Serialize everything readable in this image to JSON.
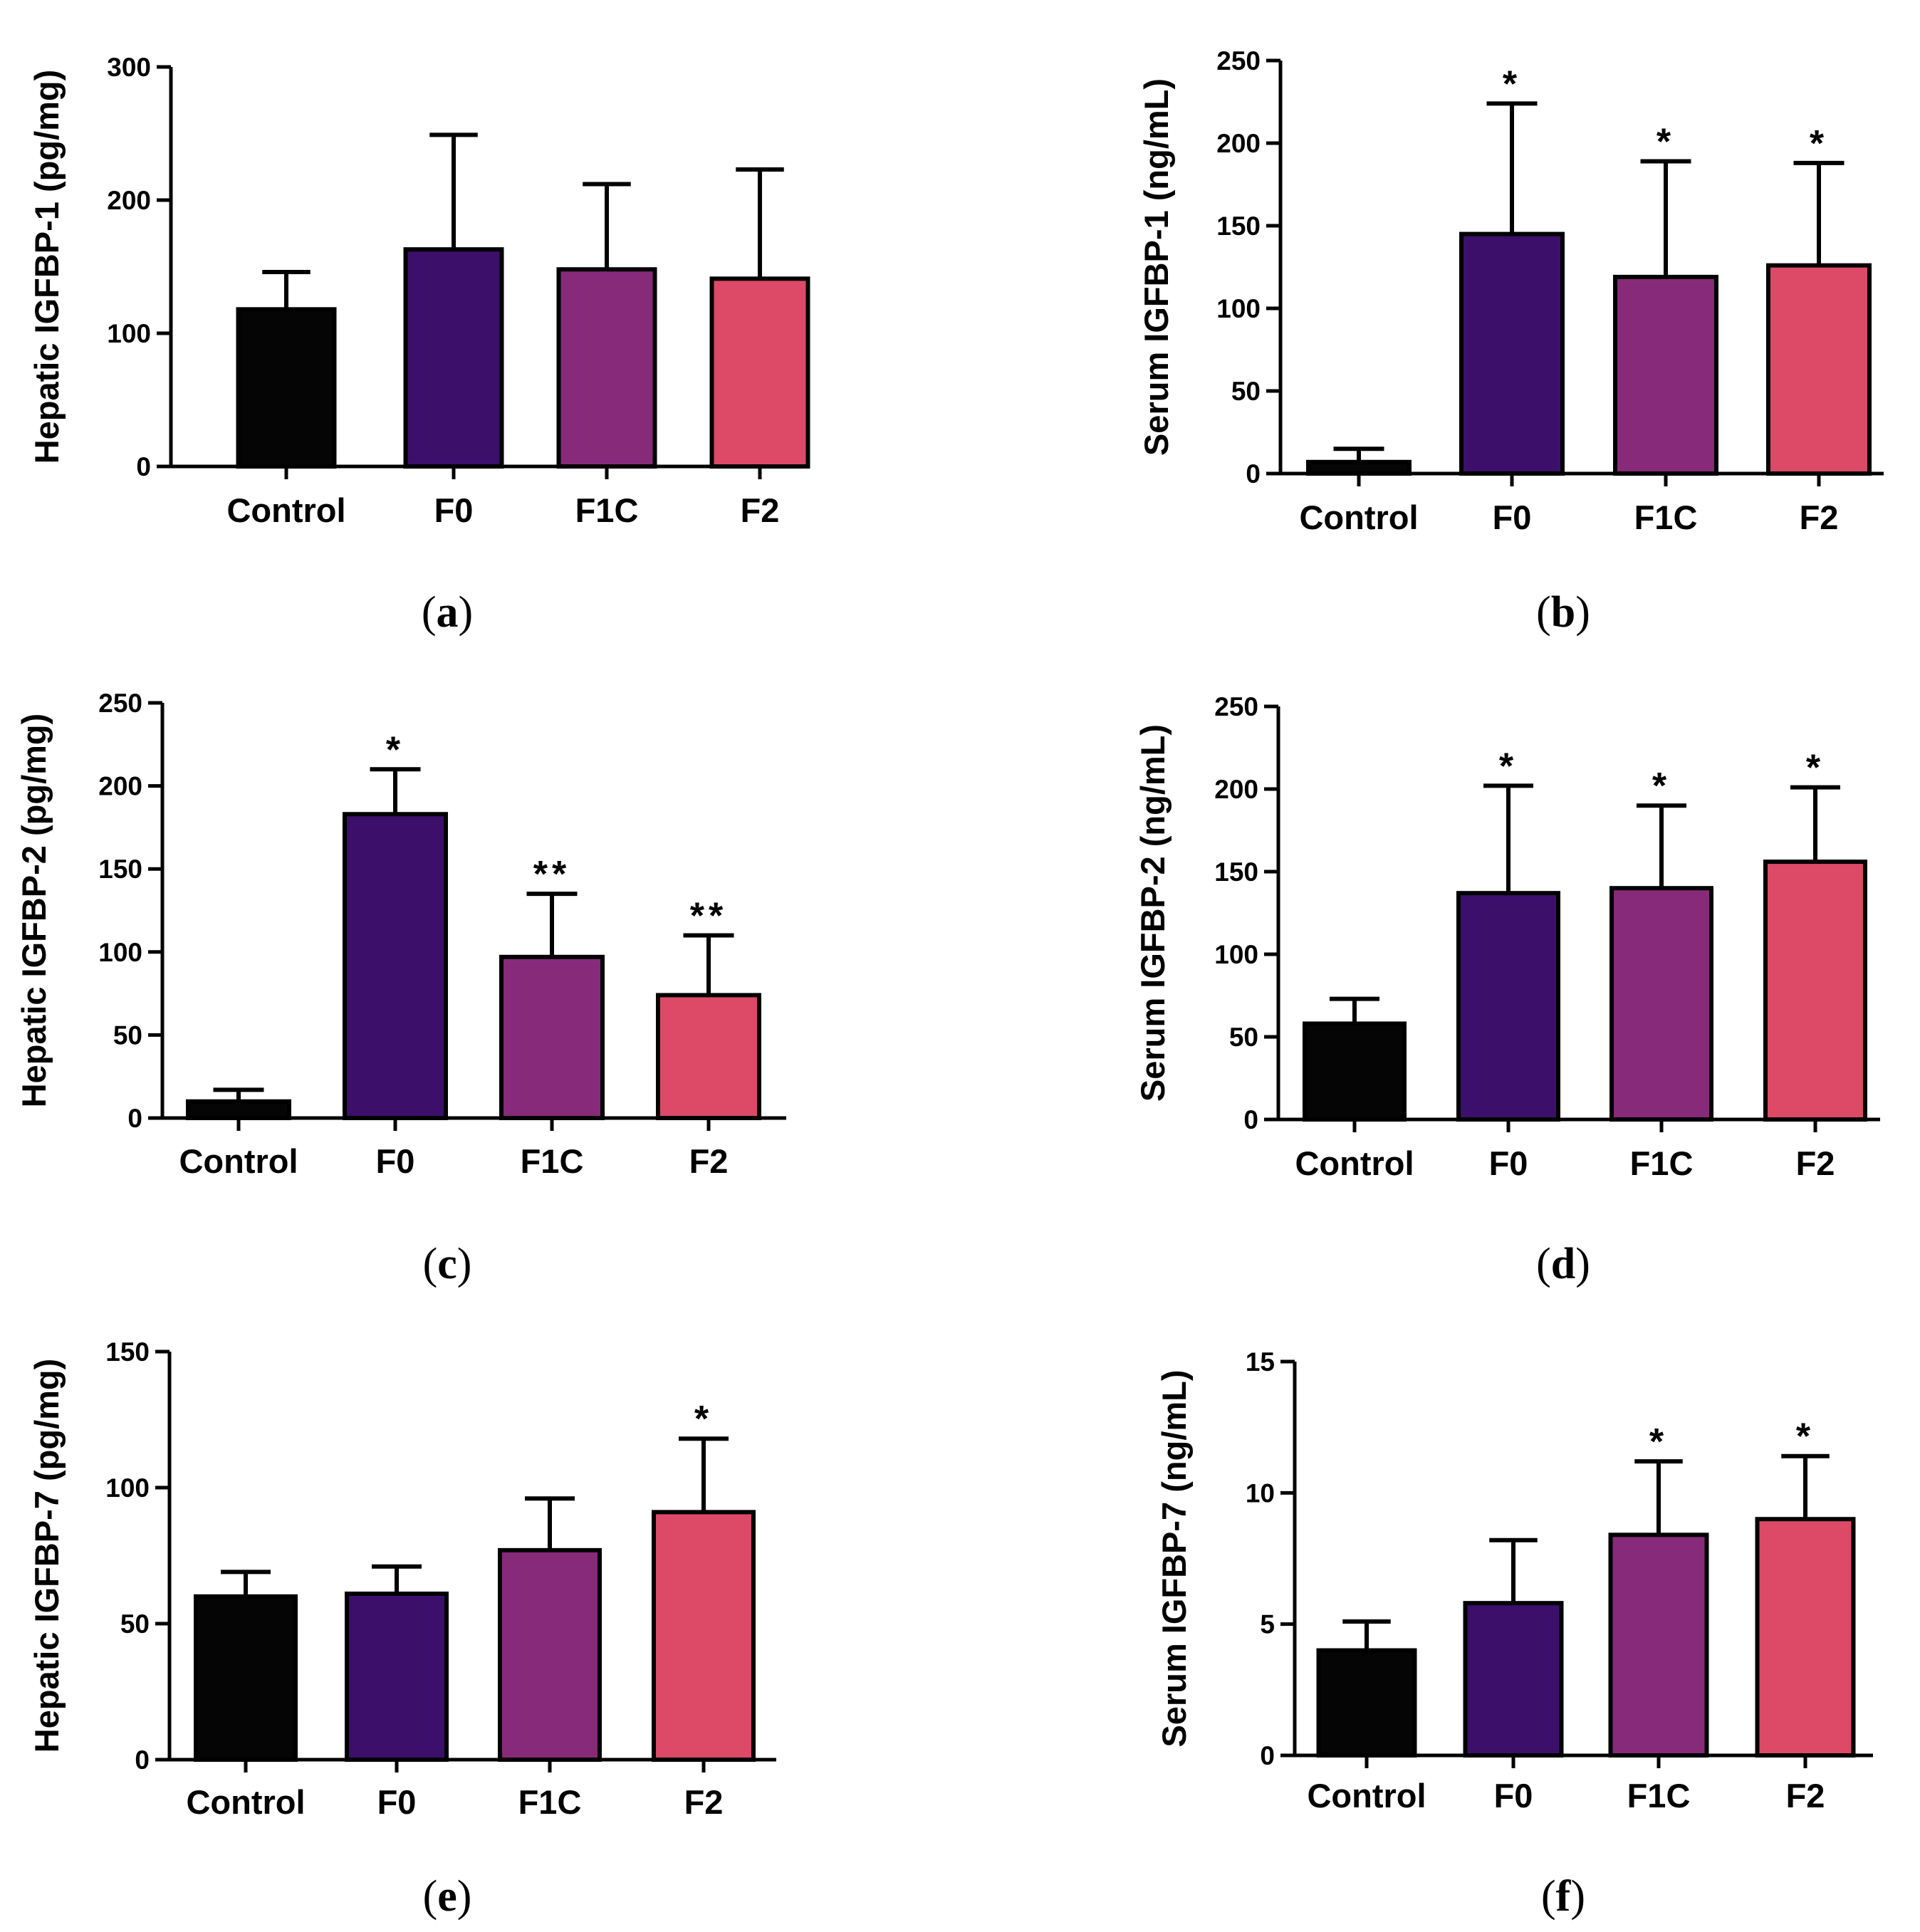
{
  "chart_data": [
    {
      "type": "bar",
      "panel": "a",
      "ylabel": "Hepatic IGFBP-1 (pg/mg)",
      "ylim": [
        0,
        300
      ],
      "yticks": [
        0,
        100,
        200,
        300
      ],
      "categories": [
        "Control",
        "F0",
        "F1C",
        "F2"
      ],
      "values": [
        118,
        163,
        148,
        141
      ],
      "errors": [
        28,
        86,
        64,
        82
      ],
      "significance": [
        "",
        "",
        "",
        ""
      ],
      "colors": [
        "#050505",
        "#3b0f6a",
        "#872a7a",
        "#dc4a68"
      ]
    },
    {
      "type": "bar",
      "panel": "b",
      "ylabel": "Serum IGFBP-1 (ng/mL)",
      "ylim": [
        0,
        250
      ],
      "yticks": [
        0,
        50,
        100,
        150,
        200,
        250
      ],
      "categories": [
        "Control",
        "F0",
        "F1C",
        "F2"
      ],
      "values": [
        7,
        145,
        119,
        126
      ],
      "errors": [
        8,
        79,
        70,
        62
      ],
      "significance": [
        "",
        "*",
        "*",
        "*"
      ],
      "colors": [
        "#050505",
        "#3b0f6a",
        "#872a7a",
        "#dc4a68"
      ]
    },
    {
      "type": "bar",
      "panel": "c",
      "ylabel": "Hepatic IGFBP-2 (pg/mg)",
      "ylim": [
        0,
        250
      ],
      "yticks": [
        0,
        50,
        100,
        150,
        200,
        250
      ],
      "categories": [
        "Control",
        "F0",
        "F1C",
        "F2"
      ],
      "values": [
        10,
        183,
        97,
        74
      ],
      "errors": [
        7,
        27,
        38,
        36
      ],
      "significance": [
        "",
        "*",
        "**",
        "**"
      ],
      "colors": [
        "#050505",
        "#3b0f6a",
        "#872a7a",
        "#dc4a68"
      ]
    },
    {
      "type": "bar",
      "panel": "d",
      "ylabel": "Serum IGFBP-2 (ng/mL)",
      "ylim": [
        0,
        250
      ],
      "yticks": [
        0,
        50,
        100,
        150,
        200,
        250
      ],
      "categories": [
        "Control",
        "F0",
        "F1C",
        "F2"
      ],
      "values": [
        58,
        137,
        140,
        156
      ],
      "errors": [
        15,
        65,
        50,
        45
      ],
      "significance": [
        "",
        "*",
        "*",
        "*"
      ],
      "colors": [
        "#050505",
        "#3b0f6a",
        "#872a7a",
        "#dc4a68"
      ]
    },
    {
      "type": "bar",
      "panel": "e",
      "ylabel": "Hepatic IGFBP-7 (pg/mg)",
      "ylim": [
        0,
        150
      ],
      "yticks": [
        0,
        50,
        100,
        150
      ],
      "categories": [
        "Control",
        "F0",
        "F1C",
        "F2"
      ],
      "values": [
        60,
        61,
        77,
        91
      ],
      "errors": [
        9,
        10,
        19,
        27
      ],
      "significance": [
        "",
        "",
        "",
        "*"
      ],
      "colors": [
        "#050505",
        "#3b0f6a",
        "#872a7a",
        "#dc4a68"
      ]
    },
    {
      "type": "bar",
      "panel": "f",
      "ylabel": "Serum IGFBP-7 (ng/mL)",
      "ylim": [
        0,
        15
      ],
      "yticks": [
        0,
        5,
        10,
        15
      ],
      "categories": [
        "Control",
        "F0",
        "F1C",
        "F2"
      ],
      "values": [
        4.0,
        5.8,
        8.4,
        9.0
      ],
      "errors": [
        1.1,
        2.4,
        2.8,
        2.4
      ],
      "significance": [
        "",
        "",
        "*",
        "*"
      ],
      "colors": [
        "#050505",
        "#3b0f6a",
        "#872a7a",
        "#dc4a68"
      ]
    }
  ]
}
